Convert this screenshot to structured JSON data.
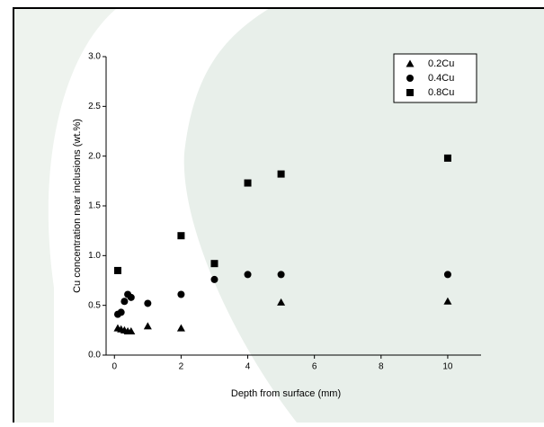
{
  "chart_data": {
    "type": "scatter",
    "x_label": "Depth from surface (mm)",
    "y_label": "Cu concentration near inclusions (wt.%)",
    "xlim": [
      -0.25,
      11
    ],
    "ylim": [
      0,
      3.0
    ],
    "xticks": [
      0,
      2,
      4,
      6,
      8,
      10
    ],
    "yticks": [
      {
        "value": 0,
        "label": "0.0"
      },
      0.5,
      {
        "value": 1,
        "label": "1.0"
      },
      1.5,
      {
        "value": 2,
        "label": "2.0"
      },
      2.5,
      {
        "value": 3,
        "label": "3.0"
      }
    ],
    "legend_position": "upper right",
    "series": [
      {
        "name": "0.2Cu",
        "marker": "triangle",
        "color": "#000000",
        "x": [
          0.1,
          0.2,
          0.3,
          0.4,
          0.5,
          1,
          2,
          5,
          10
        ],
        "values": [
          0.27,
          0.26,
          0.25,
          0.24,
          0.24,
          0.29,
          0.27,
          0.53,
          0.54
        ]
      },
      {
        "name": "0.4Cu",
        "marker": "circle",
        "color": "#000000",
        "x": [
          0.1,
          0.2,
          0.3,
          0.4,
          0.5,
          1,
          2,
          3,
          4,
          5,
          10
        ],
        "values": [
          0.41,
          0.43,
          0.54,
          0.61,
          0.58,
          0.52,
          0.61,
          0.76,
          0.81,
          0.81,
          0.81
        ]
      },
      {
        "name": "0.8Cu",
        "marker": "square",
        "color": "#000000",
        "x": [
          0.1,
          2,
          3,
          4,
          5,
          10
        ],
        "values": [
          0.85,
          1.2,
          0.92,
          1.73,
          1.82,
          1.98
        ]
      }
    ]
  }
}
